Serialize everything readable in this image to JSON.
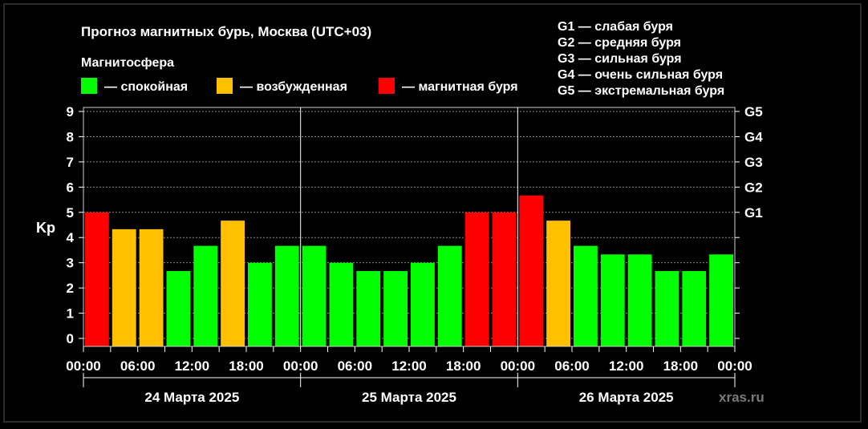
{
  "chart_data": {
    "type": "bar",
    "title": "Прогноз магнитных бурь, Москва (UTC+03)",
    "legend_title": "Магнитосфера",
    "legend": [
      {
        "key": "quiet",
        "label": "— спокойная",
        "color": "#00ff00"
      },
      {
        "key": "excited",
        "label": "— возбужденная",
        "color": "#ffc000"
      },
      {
        "key": "storm",
        "label": "— магнитная буря",
        "color": "#ff0000"
      }
    ],
    "storm_levels": [
      "G1 — слабая буря",
      "G2 — средняя буря",
      "G3 — сильная буря",
      "G4 — очень сильная буря",
      "G5 — экстремальная буря"
    ],
    "ylabel": "Kp",
    "ylim": [
      0,
      9
    ],
    "y_ticks": [
      "0",
      "1",
      "2",
      "3",
      "4",
      "5",
      "6",
      "7",
      "8",
      "9"
    ],
    "right_ticks": [
      {
        "y": 5,
        "label": "G1"
      },
      {
        "y": 6,
        "label": "G2"
      },
      {
        "y": 7,
        "label": "G3"
      },
      {
        "y": 8,
        "label": "G4"
      },
      {
        "y": 9,
        "label": "G5"
      }
    ],
    "x_ticks": [
      "00:00",
      "06:00",
      "12:00",
      "18:00",
      "00:00",
      "06:00",
      "12:00",
      "18:00",
      "00:00",
      "06:00",
      "12:00",
      "18:00",
      "00:00"
    ],
    "days": [
      "24 Марта 2025",
      "25 Марта 2025",
      "26 Марта 2025"
    ],
    "bars_per_day": 8,
    "values": [
      5.0,
      4.33,
      4.33,
      2.67,
      3.67,
      4.67,
      3.0,
      3.67,
      3.67,
      3.0,
      2.67,
      2.67,
      3.0,
      3.67,
      5.0,
      5.0,
      5.67,
      4.67,
      3.67,
      3.33,
      3.33,
      2.67,
      2.67,
      3.33
    ],
    "levels": [
      "storm",
      "excited",
      "excited",
      "quiet",
      "quiet",
      "excited",
      "quiet",
      "quiet",
      "quiet",
      "quiet",
      "quiet",
      "quiet",
      "quiet",
      "quiet",
      "storm",
      "storm",
      "storm",
      "excited",
      "quiet",
      "quiet",
      "quiet",
      "quiet",
      "quiet",
      "quiet"
    ],
    "grid": true,
    "watermark": "xras.ru"
  }
}
